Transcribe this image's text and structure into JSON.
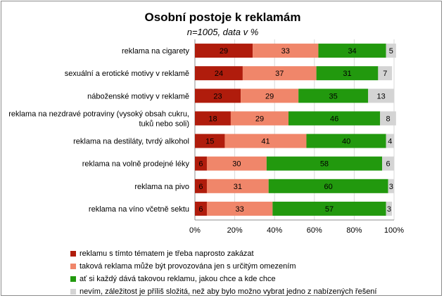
{
  "chart_data": {
    "type": "bar",
    "orientation": "horizontal",
    "stacked": true,
    "title": "Osobní postoje k reklamám",
    "subtitle": "n=1005, data v %",
    "categories": [
      "reklama na cigarety",
      "sexuální a erotické motivy v reklamě",
      "náboženské motivy v reklamě",
      "reklama na nezdravé potraviny  (vysoký obsah cukru, tuků nebo soli)",
      "reklama na destiláty, tvrdý alkohol",
      "reklama na volně prodejné léky",
      "reklama na pivo",
      "reklama na víno včetně sektu"
    ],
    "category_lines": [
      [
        "reklama na cigarety"
      ],
      [
        "sexuální a erotické motivy v reklamě"
      ],
      [
        "náboženské motivy v reklamě"
      ],
      [
        "reklama na nezdravé potraviny  (vysoký obsah cukru,",
        "tuků nebo soli)"
      ],
      [
        "reklama na destiláty, tvrdý alkohol"
      ],
      [
        "reklama na volně prodejné léky"
      ],
      [
        "reklama na pivo"
      ],
      [
        "reklama na víno včetně sektu"
      ]
    ],
    "series": [
      {
        "name": "reklamu s tímto tématem je třeba naprosto zakázat",
        "color": "#b01c0c",
        "values": [
          29,
          24,
          23,
          18,
          15,
          6,
          6,
          6
        ]
      },
      {
        "name": "taková reklama může být provozována  jen s určitým omezením",
        "color": "#f0866a",
        "values": [
          33,
          37,
          29,
          29,
          41,
          30,
          31,
          33
        ]
      },
      {
        "name": "ať si každý dává takovou reklamu, jakou chce a kde chce",
        "color": "#22990e",
        "values": [
          34,
          31,
          35,
          46,
          40,
          58,
          60,
          57
        ]
      },
      {
        "name": "nevím, záležitost je příliš složitá, než aby bylo možno vybrat jedno z nabízených řešení",
        "color": "#d4d4d4",
        "values": [
          5,
          7,
          13,
          8,
          4,
          6,
          3,
          3
        ]
      }
    ],
    "x_ticks": [
      "0%",
      "20%",
      "40%",
      "60%",
      "80%",
      "100%"
    ],
    "xlim": [
      0,
      100
    ],
    "grid": true,
    "legend_position": "bottom"
  }
}
